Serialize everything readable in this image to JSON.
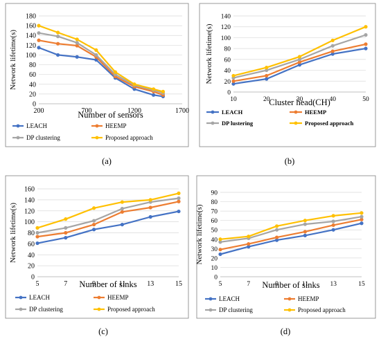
{
  "chart_data": [
    {
      "type": "line",
      "panel": "(a)",
      "xlabel": "Number of sensors",
      "ylabel": "Network lifetime(s)",
      "xlim": [
        200,
        1700
      ],
      "ylim": [
        0,
        180
      ],
      "xticks": [
        200,
        700,
        1200,
        1700
      ],
      "yticks": [
        0,
        20,
        40,
        60,
        80,
        100,
        120,
        140,
        160,
        180
      ],
      "x": [
        200,
        400,
        600,
        800,
        1000,
        1200,
        1400,
        1500
      ],
      "series": [
        {
          "name": "LEACH",
          "color": "#4472C4",
          "values": [
            115,
            100,
            96,
            90,
            53,
            30,
            18,
            15
          ]
        },
        {
          "name": "HEEMP",
          "color": "#ED7D31",
          "values": [
            130,
            123,
            119,
            96,
            56,
            35,
            25,
            18
          ]
        },
        {
          "name": "DP clustering",
          "color": "#A5A5A5",
          "values": [
            145,
            138,
            125,
            100,
            60,
            38,
            28,
            22
          ]
        },
        {
          "name": "Proposed approach",
          "color": "#FFC000",
          "values": [
            160,
            146,
            132,
            110,
            65,
            40,
            30,
            25
          ]
        }
      ],
      "grid": true,
      "legend": "bottom"
    },
    {
      "type": "line",
      "panel": "(b)",
      "xlabel": "Cluster head(CH)",
      "ylabel": "Network lifetime(s)",
      "xlim": [
        10,
        50
      ],
      "ylim": [
        0,
        140
      ],
      "xticks": [
        10,
        20,
        30,
        40,
        50
      ],
      "yticks": [
        0,
        20,
        40,
        60,
        80,
        100,
        120,
        140
      ],
      "x": [
        10,
        20,
        30,
        40,
        50
      ],
      "series": [
        {
          "name": "LEACH",
          "color": "#4472C4",
          "values": [
            15,
            24,
            50,
            70,
            80
          ]
        },
        {
          "name": "HEEMP",
          "color": "#ED7D31",
          "values": [
            20,
            30,
            55,
            75,
            88
          ]
        },
        {
          "name": "DP lustering",
          "color": "#A5A5A5",
          "values": [
            26,
            40,
            60,
            85,
            105
          ]
        },
        {
          "name": "Proposed approach",
          "color": "#FFC000",
          "values": [
            30,
            45,
            65,
            95,
            120
          ]
        }
      ],
      "grid": true,
      "legend": "bottom"
    },
    {
      "type": "line",
      "panel": "(c)",
      "xlabel": "Number of sinks",
      "ylabel": "Network lifetime(s)",
      "xlim": [
        5,
        15
      ],
      "ylim": [
        0,
        160
      ],
      "xticks": [
        5,
        7,
        9,
        11,
        13,
        15
      ],
      "yticks": [
        0,
        20,
        40,
        60,
        80,
        100,
        120,
        140,
        160
      ],
      "x": [
        5,
        7,
        9,
        11,
        13,
        15
      ],
      "series": [
        {
          "name": "LEACH",
          "color": "#4472C4",
          "values": [
            61,
            71,
            86,
            95,
            109,
            119
          ]
        },
        {
          "name": "HEEMP",
          "color": "#ED7D31",
          "values": [
            73,
            80,
            95,
            118,
            126,
            137
          ]
        },
        {
          "name": "DP clustering",
          "color": "#A5A5A5",
          "values": [
            80,
            89,
            102,
            124,
            136,
            143
          ]
        },
        {
          "name": "Proposed approach",
          "color": "#FFC000",
          "values": [
            89,
            105,
            125,
            136,
            140,
            152
          ]
        }
      ],
      "grid": true,
      "legend": "bottom"
    },
    {
      "type": "line",
      "panel": "(d)",
      "xlabel": "Number of sinks",
      "ylabel": "Network lifetime(s)",
      "xlim": [
        5,
        15
      ],
      "ylim": [
        0,
        90
      ],
      "xticks": [
        5,
        7,
        9,
        11,
        13,
        15
      ],
      "yticks": [
        0,
        10,
        20,
        30,
        40,
        50,
        60,
        70,
        80,
        90
      ],
      "x": [
        5,
        7,
        9,
        11,
        13,
        15
      ],
      "series": [
        {
          "name": "LEACH",
          "color": "#4472C4",
          "values": [
            24,
            32,
            39,
            44,
            50,
            57
          ]
        },
        {
          "name": "HEEMP",
          "color": "#ED7D31",
          "values": [
            29,
            35,
            42,
            48,
            55,
            61
          ]
        },
        {
          "name": "DP clustering",
          "color": "#A5A5A5",
          "values": [
            37,
            41,
            50,
            56,
            59,
            64
          ]
        },
        {
          "name": "Proposed approach",
          "color": "#FFC000",
          "values": [
            40,
            43,
            54,
            60,
            65,
            68
          ]
        }
      ],
      "grid": true,
      "legend": "bottom"
    }
  ]
}
